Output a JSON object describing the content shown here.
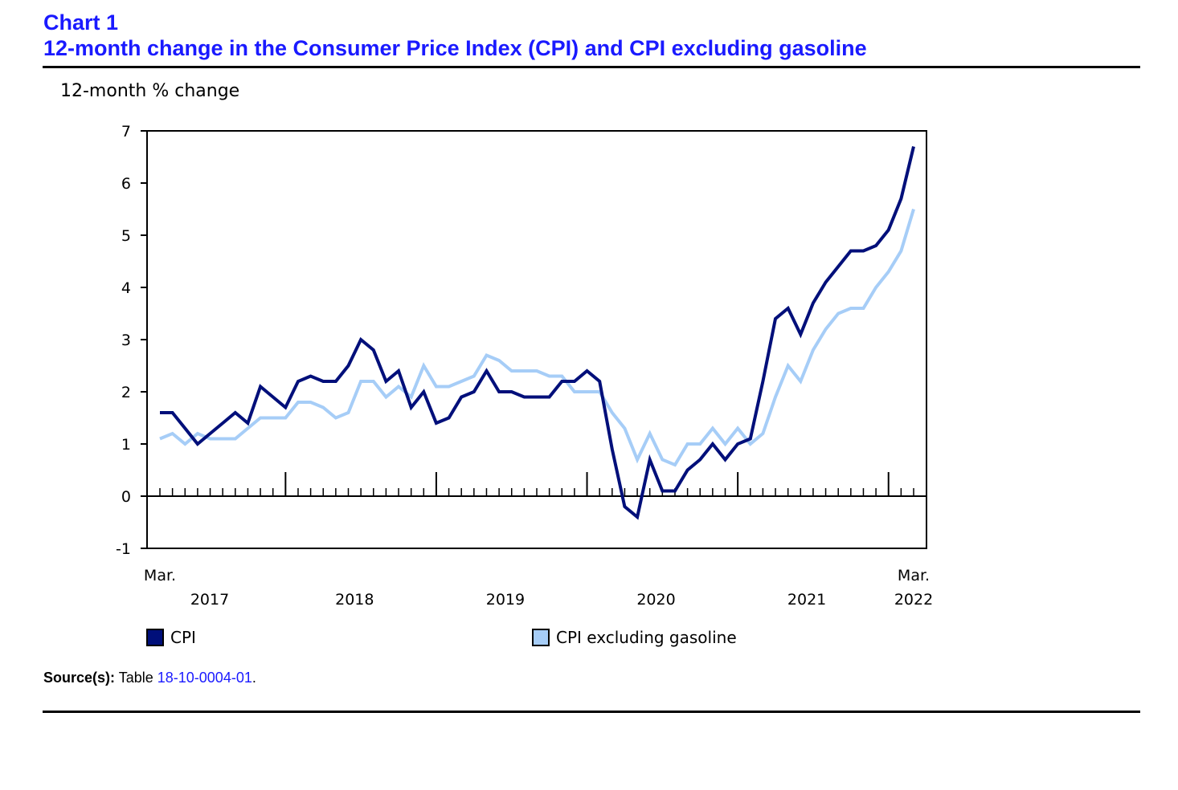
{
  "header": {
    "chart_number": "Chart 1",
    "title": "12-month change in the Consumer Price Index (CPI) and CPI excluding gasoline"
  },
  "source": {
    "label": "Source(s):",
    "text": "Table",
    "link": "18-10-0004-01",
    "end": "."
  },
  "chart_data": {
    "type": "line",
    "title": "12-month change in the Consumer Price Index (CPI) and CPI excluding gasoline",
    "ylabel": "12-month % change",
    "xlabel": "",
    "ylim": [
      -1,
      7
    ],
    "yticks": [
      -1,
      0,
      1,
      2,
      3,
      4,
      5,
      6,
      7
    ],
    "x_start": "2017-03",
    "x_end": "2022-03",
    "x_tick_labels": [
      {
        "label": "Mar.",
        "sub": "2017"
      },
      {
        "label": "",
        "sub": "2018"
      },
      {
        "label": "",
        "sub": "2019"
      },
      {
        "label": "",
        "sub": "2020"
      },
      {
        "label": "",
        "sub": "2021"
      },
      {
        "label": "Mar.",
        "sub": "2022"
      }
    ],
    "grid": false,
    "legend_position": "bottom",
    "series": [
      {
        "name": "CPI",
        "color": "#000f7a",
        "values": [
          1.6,
          1.6,
          1.3,
          1.0,
          1.2,
          1.4,
          1.6,
          1.4,
          2.1,
          1.9,
          1.7,
          2.2,
          2.3,
          2.2,
          2.2,
          2.5,
          3.0,
          2.8,
          2.2,
          2.4,
          1.7,
          2.0,
          1.4,
          1.5,
          1.9,
          2.0,
          2.4,
          2.0,
          2.0,
          1.9,
          1.9,
          1.9,
          2.2,
          2.2,
          2.4,
          2.2,
          0.9,
          -0.2,
          -0.4,
          0.7,
          0.1,
          0.1,
          0.5,
          0.7,
          1.0,
          0.7,
          1.0,
          1.1,
          2.2,
          3.4,
          3.6,
          3.1,
          3.7,
          4.1,
          4.4,
          4.7,
          4.7,
          4.8,
          5.1,
          5.7,
          6.7
        ]
      },
      {
        "name": "CPI excluding gasoline",
        "color": "#a6cdf7",
        "values": [
          1.1,
          1.2,
          1.0,
          1.2,
          1.1,
          1.1,
          1.1,
          1.3,
          1.5,
          1.5,
          1.5,
          1.8,
          1.8,
          1.7,
          1.5,
          1.6,
          2.2,
          2.2,
          1.9,
          2.1,
          1.9,
          2.5,
          2.1,
          2.1,
          2.2,
          2.3,
          2.7,
          2.6,
          2.4,
          2.4,
          2.4,
          2.3,
          2.3,
          2.0,
          2.0,
          2.0,
          1.6,
          1.3,
          0.7,
          1.2,
          0.7,
          0.6,
          1.0,
          1.0,
          1.3,
          1.0,
          1.3,
          1.0,
          1.2,
          1.9,
          2.5,
          2.2,
          2.8,
          3.2,
          3.5,
          3.6,
          3.6,
          4.0,
          4.3,
          4.7,
          5.5
        ]
      }
    ]
  }
}
